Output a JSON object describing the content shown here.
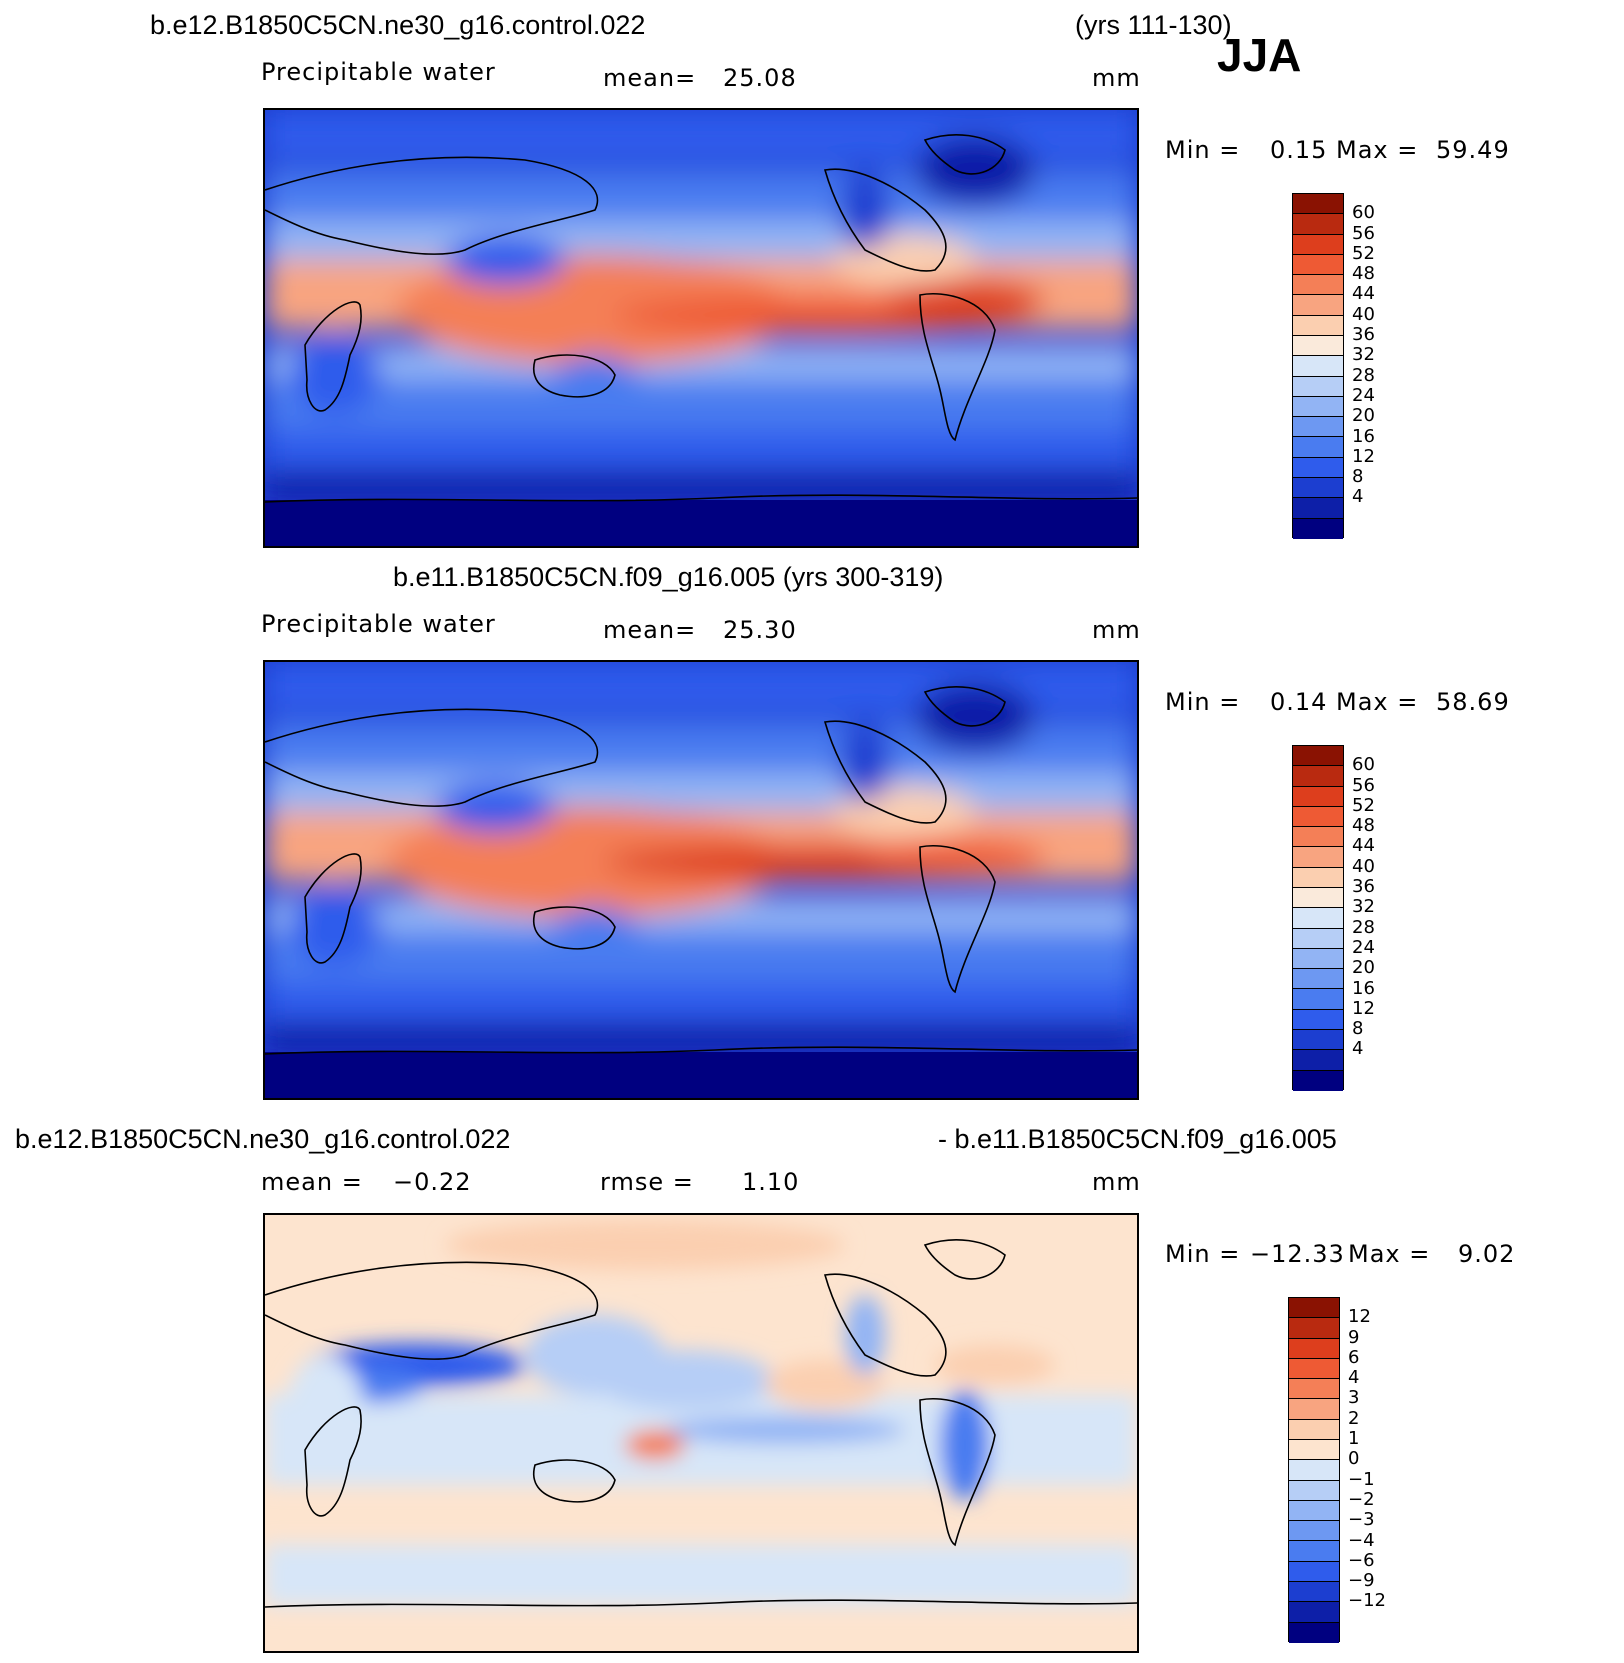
{
  "season": "JJA",
  "colors": {
    "seq": [
      "#000080",
      "#0d1fa8",
      "#1c3ed0",
      "#2f5cec",
      "#4a7cf0",
      "#6d98f2",
      "#92b4f4",
      "#b6cef6",
      "#d7e6f8",
      "#faeadb",
      "#fbcfb0",
      "#f8a480",
      "#f47f57",
      "#ee5a34",
      "#dd3e1d",
      "#b92a10",
      "#8a1202"
    ],
    "diff": [
      "#000080",
      "#0d1fa8",
      "#1c3ed0",
      "#2f5cec",
      "#4a7cf0",
      "#6d98f2",
      "#92b4f4",
      "#b6cef6",
      "#d7e6f8",
      "#fde4cf",
      "#fbcfb0",
      "#f8a480",
      "#f47f57",
      "#ee5a34",
      "#dd3e1d",
      "#b92a10",
      "#8a1202"
    ]
  },
  "panels": [
    {
      "case_left": "b.e12.B1850C5CN.ne30_g16.control.022",
      "case_right": "(yrs 111-130)",
      "variable": "Precipitable water",
      "stat_label": "mean=",
      "stat_value": "25.08",
      "units": "mm",
      "min_label": "Min =",
      "min_value": "0.15",
      "max_label": "Max =",
      "max_value": "59.49",
      "colorbar_ticks": [
        "60",
        "56",
        "52",
        "48",
        "44",
        "40",
        "36",
        "32",
        "28",
        "24",
        "20",
        "16",
        "12",
        "8",
        "4"
      ]
    },
    {
      "case_title": "b.e11.B1850C5CN.f09_g16.005 (yrs 300-319)",
      "variable": "Precipitable water",
      "stat_label": "mean=",
      "stat_value": "25.30",
      "units": "mm",
      "min_label": "Min =",
      "min_value": "0.14",
      "max_label": "Max =",
      "max_value": "58.69",
      "colorbar_ticks": [
        "60",
        "56",
        "52",
        "48",
        "44",
        "40",
        "36",
        "32",
        "28",
        "24",
        "20",
        "16",
        "12",
        "8",
        "4"
      ]
    },
    {
      "case_left": "b.e12.B1850C5CN.ne30_g16.control.022",
      "case_right": "- b.e11.B1850C5CN.f09_g16.005",
      "mean_label": "mean =",
      "mean_value": "−0.22",
      "rmse_label": "rmse =",
      "rmse_value": "1.10",
      "units": "mm",
      "min_label": "Min =",
      "min_value": "−12.33",
      "max_label": "Max =",
      "max_value": "9.02",
      "colorbar_ticks": [
        "12",
        "9",
        "6",
        "4",
        "3",
        "2",
        "1",
        "0",
        "−1",
        "−2",
        "−3",
        "−4",
        "−6",
        "−9",
        "−12"
      ]
    }
  ]
}
